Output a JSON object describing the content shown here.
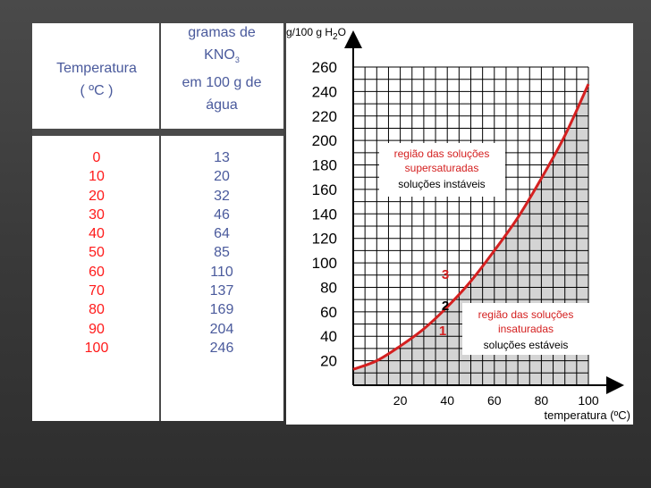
{
  "table": {
    "header_temp_line1": "Temperatura",
    "header_temp_line2": "( ºC )",
    "header_kno3_line1": "gramas de",
    "header_kno3_line2_main": "KNO",
    "header_kno3_line2_sub": "3",
    "header_kno3_line3": "em 100 g de",
    "header_kno3_line4": "água",
    "temperatures": [
      "0",
      "10",
      "20",
      "30",
      "40",
      "50",
      "60",
      "70",
      "80",
      "90",
      "100"
    ],
    "solubilities": [
      "13",
      "20",
      "32",
      "46",
      "64",
      "85",
      "110",
      "137",
      "169",
      "204",
      "246"
    ]
  },
  "colors": {
    "background": "#3a3a3a",
    "header_text": "#4a5a9c",
    "temperature_text": "#ff1a1a",
    "curve": "#d42020",
    "saturated_fill": "#d4d4d4",
    "annotation_red": "#d42020"
  },
  "chart_data": {
    "type": "line",
    "ylabel_main": "g/100 g H",
    "ylabel_sub": "2",
    "ylabel_end": "O",
    "xlabel": "temperatura (ºC)",
    "xlim": [
      0,
      100
    ],
    "ylim": [
      0,
      260
    ],
    "xticks": [
      "20",
      "40",
      "60",
      "80",
      "100"
    ],
    "yticks": [
      "20",
      "40",
      "60",
      "80",
      "100",
      "120",
      "140",
      "160",
      "180",
      "200",
      "220",
      "240",
      "260"
    ],
    "grid": true,
    "series": [
      {
        "x": [
          0,
          10,
          20,
          30,
          40,
          50,
          60,
          70,
          80,
          90,
          100
        ],
        "values": [
          13,
          20,
          32,
          46,
          64,
          85,
          110,
          137,
          169,
          204,
          246
        ]
      }
    ],
    "annotations": {
      "supersaturated_line1": "região das soluções",
      "supersaturated_line2": "supersaturadas",
      "supersaturated_line3": "soluções instáveis",
      "unsaturated_line1": "região das soluções",
      "unsaturated_line2": "insaturadas",
      "unsaturated_line3": "soluções estáveis",
      "point_3": "3",
      "point_2": "2",
      "point_1": "1"
    }
  }
}
